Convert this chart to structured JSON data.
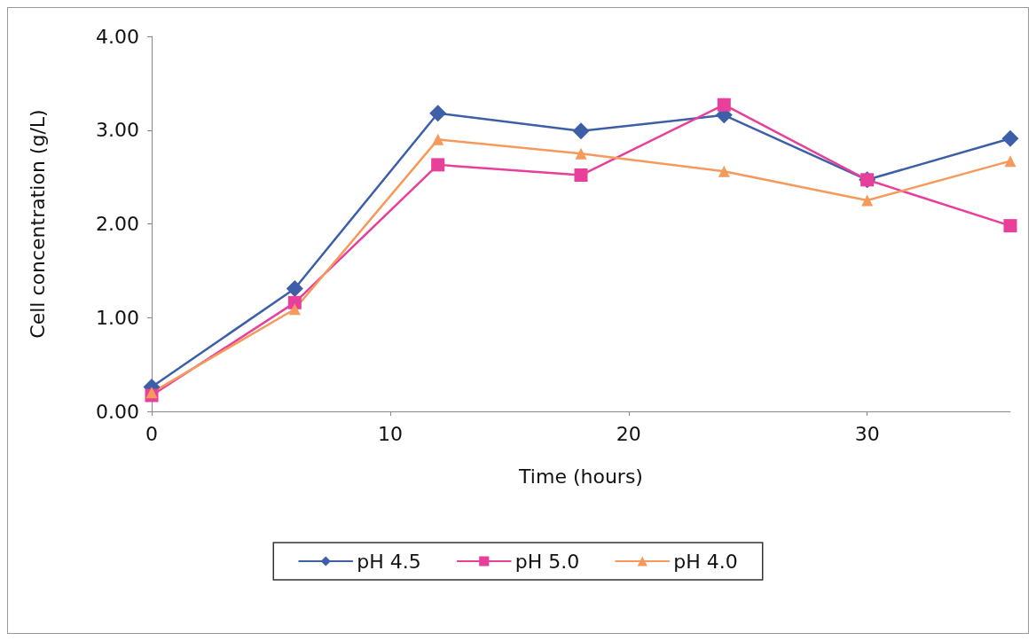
{
  "chart_data": {
    "type": "line",
    "xlabel": "Time (hours)",
    "ylabel": "Cell concentration (g/L)",
    "x": [
      0,
      6,
      12,
      18,
      24,
      30,
      36
    ],
    "xlim": [
      0,
      36
    ],
    "xticks": [
      0,
      10,
      20,
      30
    ],
    "ylim": [
      0,
      4
    ],
    "yticks": [
      {
        "value": 0,
        "label": "0.00"
      },
      {
        "value": 1,
        "label": "1.00"
      },
      {
        "value": 2,
        "label": "2.00"
      },
      {
        "value": 3,
        "label": "3.00"
      },
      {
        "value": 4,
        "label": "4.00"
      }
    ],
    "grid": false,
    "legend": "bottom",
    "series": [
      {
        "name": "pH 4.5",
        "color": "#3c5fa8",
        "marker": "diamond",
        "values": [
          0.26,
          1.31,
          3.18,
          2.99,
          3.16,
          2.47,
          2.91
        ]
      },
      {
        "name": "pH 5.0",
        "color": "#e8409a",
        "marker": "square",
        "values": [
          0.17,
          1.16,
          2.63,
          2.52,
          3.27,
          2.47,
          1.98
        ]
      },
      {
        "name": "pH 4.0",
        "color": "#f59a5a",
        "marker": "triangle",
        "values": [
          0.2,
          1.09,
          2.9,
          2.75,
          2.56,
          2.25,
          2.67
        ]
      }
    ]
  }
}
